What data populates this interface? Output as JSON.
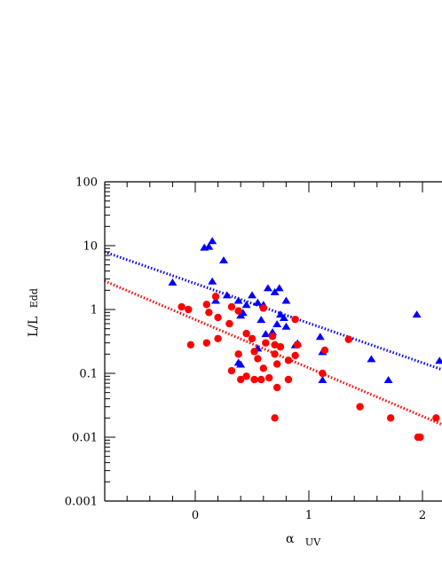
{
  "chart_data": {
    "type": "scatter",
    "title": "",
    "xlabel": {
      "main": "α",
      "sub": "UV"
    },
    "ylabel": {
      "main": "L/L",
      "sub": "Edd"
    },
    "xlim": [
      -0.8,
      2.2
    ],
    "ylim": [
      0.001,
      100
    ],
    "yscale": "log",
    "grid": false,
    "legend": "none",
    "x_ticks": [
      {
        "value": 0,
        "label": "0"
      },
      {
        "value": 1,
        "label": "1"
      },
      {
        "value": 2,
        "label": "2"
      }
    ],
    "y_ticks": [
      {
        "value": 100,
        "label": "100"
      },
      {
        "value": 10,
        "label": "10"
      },
      {
        "value": 1,
        "label": "1"
      },
      {
        "value": 0.1,
        "label": "0.1"
      },
      {
        "value": 0.01,
        "label": "0.01"
      },
      {
        "value": 0.001,
        "label": "0.001"
      }
    ],
    "series": [
      {
        "marker": "triangle",
        "color": "#0000ff",
        "points": [
          [
            -0.2,
            2.7
          ],
          [
            0.08,
            9.5
          ],
          [
            0.12,
            9.8
          ],
          [
            0.15,
            12
          ],
          [
            0.25,
            6
          ],
          [
            0.15,
            2.8
          ],
          [
            0.28,
            1.7
          ],
          [
            0.18,
            1.4
          ],
          [
            0.38,
            1.4
          ],
          [
            0.45,
            1.2
          ],
          [
            0.5,
            1.7
          ],
          [
            0.55,
            1.3
          ],
          [
            0.6,
            1.2
          ],
          [
            0.64,
            2.2
          ],
          [
            0.7,
            1.9
          ],
          [
            0.74,
            2.2
          ],
          [
            0.8,
            1.4
          ],
          [
            0.75,
            0.85
          ],
          [
            0.78,
            0.75
          ],
          [
            0.72,
            0.6
          ],
          [
            0.8,
            0.55
          ],
          [
            0.68,
            0.45
          ],
          [
            0.42,
            0.9
          ],
          [
            0.4,
            0.82
          ],
          [
            0.58,
            0.7
          ],
          [
            0.62,
            0.42
          ],
          [
            0.88,
            0.28
          ],
          [
            0.9,
            0.3
          ],
          [
            0.55,
            0.25
          ],
          [
            0.38,
            0.15
          ],
          [
            0.4,
            0.14
          ],
          [
            1.1,
            0.38
          ],
          [
            1.12,
            0.22
          ],
          [
            1.12,
            0.08
          ],
          [
            1.55,
            0.17
          ],
          [
            1.7,
            0.08
          ],
          [
            1.95,
            0.85
          ],
          [
            2.15,
            0.16
          ]
        ]
      },
      {
        "marker": "circle",
        "color": "#ff0000",
        "points": [
          [
            -0.12,
            1.1
          ],
          [
            -0.06,
            1.0
          ],
          [
            -0.04,
            0.28
          ],
          [
            0.1,
            0.3
          ],
          [
            0.1,
            1.2
          ],
          [
            0.12,
            0.9
          ],
          [
            0.18,
            1.6
          ],
          [
            0.2,
            0.75
          ],
          [
            0.2,
            0.35
          ],
          [
            0.3,
            0.6
          ],
          [
            0.32,
            1.1
          ],
          [
            0.38,
            0.95
          ],
          [
            0.45,
            0.42
          ],
          [
            0.5,
            0.35
          ],
          [
            0.52,
            0.22
          ],
          [
            0.6,
            1.05
          ],
          [
            0.62,
            0.3
          ],
          [
            0.55,
            0.17
          ],
          [
            0.68,
            0.38
          ],
          [
            0.7,
            0.28
          ],
          [
            0.7,
            0.2
          ],
          [
            0.72,
            0.14
          ],
          [
            0.75,
            0.26
          ],
          [
            0.82,
            0.16
          ],
          [
            0.88,
            0.7
          ],
          [
            0.9,
            0.28
          ],
          [
            0.88,
            0.19
          ],
          [
            0.6,
            0.12
          ],
          [
            0.45,
            0.09
          ],
          [
            0.4,
            0.08
          ],
          [
            0.32,
            0.11
          ],
          [
            0.38,
            0.2
          ],
          [
            0.52,
            0.08
          ],
          [
            0.58,
            0.08
          ],
          [
            0.65,
            0.085
          ],
          [
            0.72,
            0.06
          ],
          [
            0.82,
            0.08
          ],
          [
            0.7,
            0.02
          ],
          [
            1.12,
            0.1
          ],
          [
            1.14,
            0.23
          ],
          [
            1.35,
            0.34
          ],
          [
            1.45,
            0.03
          ],
          [
            1.72,
            0.02
          ],
          [
            1.96,
            0.01
          ],
          [
            1.98,
            0.01
          ],
          [
            2.12,
            0.02
          ]
        ]
      }
    ],
    "fit_lines": [
      {
        "color": "#0000ff",
        "style": "dotted",
        "x": [
          -0.8,
          2.2
        ],
        "y": [
          8,
          0.11
        ]
      },
      {
        "color": "#ff0000",
        "style": "dotted",
        "x": [
          -0.8,
          2.2
        ],
        "y": [
          2.8,
          0.015
        ]
      }
    ]
  }
}
